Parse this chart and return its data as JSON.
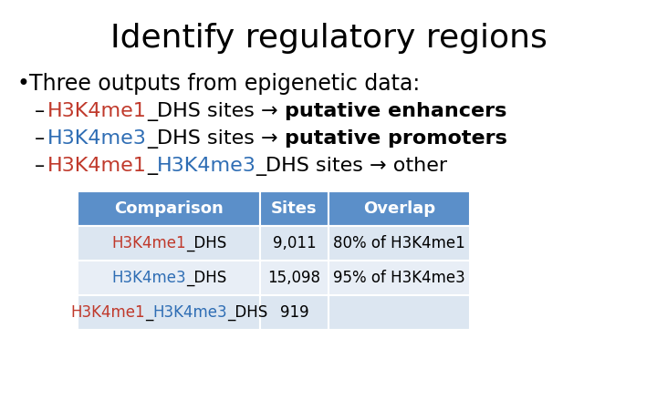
{
  "title": "Identify regulatory regions",
  "title_fontsize": 26,
  "bullet_text": "Three outputs from epigenetic data:",
  "bullet_fontsize": 17,
  "dash_items": [
    {
      "parts": [
        {
          "text": "H3K4me1",
          "color": "#c0392b",
          "bold": false
        },
        {
          "text": "_DHS sites → ",
          "color": "#000000",
          "bold": false
        },
        {
          "text": "putative enhancers",
          "color": "#000000",
          "bold": true
        }
      ]
    },
    {
      "parts": [
        {
          "text": "H3K4me3",
          "color": "#2e6db4",
          "bold": false
        },
        {
          "text": "_DHS sites → ",
          "color": "#000000",
          "bold": false
        },
        {
          "text": "putative promoters",
          "color": "#000000",
          "bold": true
        }
      ]
    },
    {
      "parts": [
        {
          "text": "H3K4me1",
          "color": "#c0392b",
          "bold": false
        },
        {
          "text": "_",
          "color": "#000000",
          "bold": false
        },
        {
          "text": "H3K4me3",
          "color": "#2e6db4",
          "bold": false
        },
        {
          "text": "_DHS sites → other",
          "color": "#000000",
          "bold": false
        }
      ]
    }
  ],
  "dash_fontsize": 16,
  "table": {
    "header": [
      "Comparison",
      "Sites",
      "Overlap"
    ],
    "header_bg": "#5b8fc9",
    "header_color": "#ffffff",
    "header_fontsize": 13,
    "row_bg_odd": "#dce6f1",
    "row_bg_even": "#e8eef6",
    "row_fontsize": 12,
    "rows": [
      {
        "comparison_parts": [
          {
            "text": "H3K4me1",
            "color": "#c0392b"
          },
          {
            "text": "_DHS",
            "color": "#000000"
          }
        ],
        "sites": "9,011",
        "overlap": "80% of H3K4me1"
      },
      {
        "comparison_parts": [
          {
            "text": "H3K4me3",
            "color": "#2e6db4"
          },
          {
            "text": "_DHS",
            "color": "#000000"
          }
        ],
        "sites": "15,098",
        "overlap": "95% of H3K4me3"
      },
      {
        "comparison_parts": [
          {
            "text": "H3K4me1",
            "color": "#c0392b"
          },
          {
            "text": "_",
            "color": "#000000"
          },
          {
            "text": "H3K4me3",
            "color": "#2e6db4"
          },
          {
            "text": "_DHS",
            "color": "#000000"
          }
        ],
        "sites": "919",
        "overlap": ""
      }
    ]
  },
  "bg_color": "#ffffff"
}
